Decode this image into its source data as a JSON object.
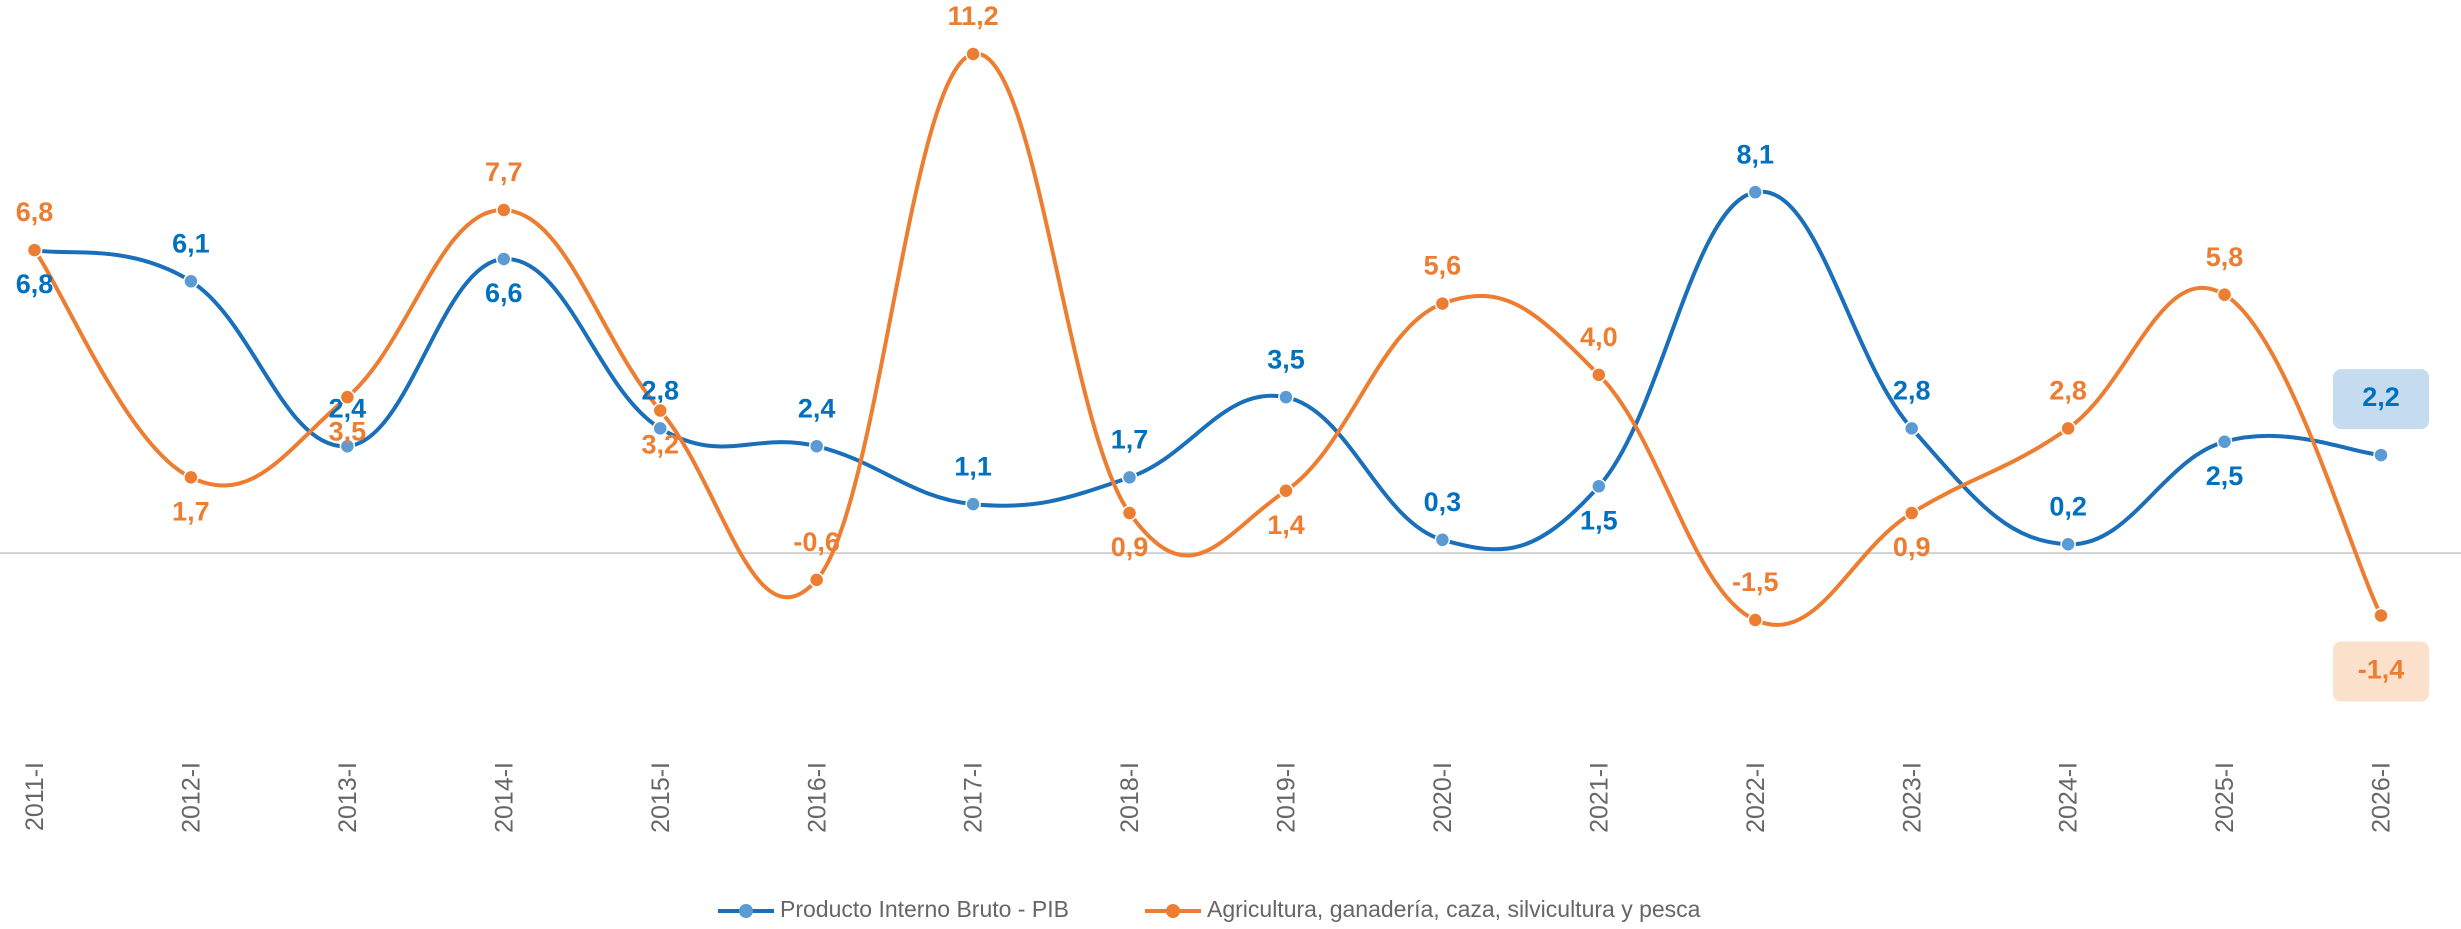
{
  "chart_data": {
    "type": "line",
    "categories": [
      "2011-I",
      "2012-I",
      "2013-I",
      "2014-I",
      "2015-I",
      "2016-I",
      "2017-I",
      "2018-I",
      "2019-I",
      "2020-I",
      "2021-I",
      "2022-I",
      "2023-I",
      "2024-I",
      "2025-I",
      "2026-I"
    ],
    "series": [
      {
        "name": "Producto Interno Bruto - PIB",
        "color": "#1a6fba",
        "marker_color": "#5b9bd5",
        "label_color": "#0070c0",
        "values": [
          6.8,
          6.1,
          2.4,
          6.6,
          2.8,
          2.4,
          1.1,
          1.7,
          3.5,
          0.3,
          1.5,
          8.1,
          2.8,
          0.2,
          2.5,
          2.2
        ],
        "value_labels": [
          "6,8",
          "6,1",
          "2,4",
          "6,6",
          "2,8",
          "2,4",
          "1,1",
          "1,7",
          "3,5",
          "0,3",
          "1,5",
          "8,1",
          "2,8",
          "0,2",
          "2,5",
          "2,2"
        ]
      },
      {
        "name": "Agricultura, ganadería, caza, silvicultura y pesca",
        "color": "#ed7d31",
        "marker_color": "#ed7d31",
        "label_color": "#ed7d31",
        "values": [
          6.8,
          1.7,
          3.5,
          7.7,
          3.2,
          -0.6,
          11.2,
          0.9,
          1.4,
          5.6,
          4.0,
          -1.5,
          0.9,
          2.8,
          5.8,
          -1.4
        ],
        "value_labels": [
          "6,8",
          "1,7",
          "3,5",
          "7,7",
          "3,2",
          "-0,6",
          "11,2",
          "0,9",
          "1,4",
          "5,6",
          "4,0",
          "-1,5",
          "0,9",
          "2,8",
          "5,8",
          "-1,4"
        ]
      }
    ]
  }
}
